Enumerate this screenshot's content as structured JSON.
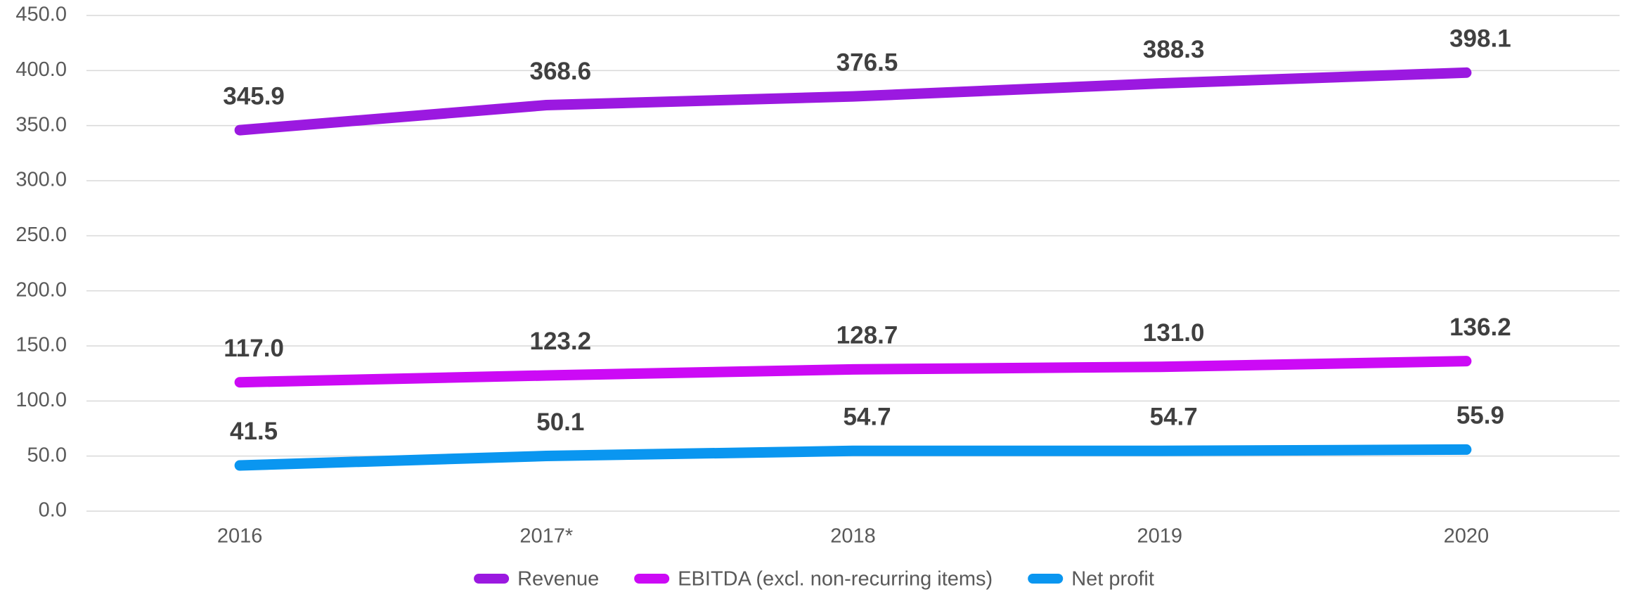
{
  "chart_data": {
    "type": "line",
    "categories": [
      "2016",
      "2017*",
      "2018",
      "2019",
      "2020"
    ],
    "series": [
      {
        "name": "Revenue",
        "color": "#9b19e0",
        "values": [
          345.9,
          368.6,
          376.5,
          388.3,
          398.1
        ],
        "value_labels": [
          "345.9",
          "368.6",
          "376.5",
          "388.3",
          "398.1"
        ]
      },
      {
        "name": "EBITDA (excl. non-recurring items)",
        "color": "#cc0af5",
        "values": [
          117.0,
          123.2,
          128.7,
          131.0,
          136.2
        ],
        "value_labels": [
          "117.0",
          "123.2",
          "128.7",
          "131.0",
          "136.2"
        ]
      },
      {
        "name": "Net profit",
        "color": "#0a96f0",
        "values": [
          41.5,
          50.1,
          54.7,
          54.7,
          55.9
        ],
        "value_labels": [
          "41.5",
          "50.1",
          "54.7",
          "54.7",
          "55.9"
        ]
      }
    ],
    "ylim": [
      0,
      450
    ],
    "yticks": [
      {
        "value": 0,
        "label": "0.0"
      },
      {
        "value": 50,
        "label": "50.0"
      },
      {
        "value": 100,
        "label": "100.0"
      },
      {
        "value": 150,
        "label": "150.0"
      },
      {
        "value": 200,
        "label": "200.0"
      },
      {
        "value": 250,
        "label": "250.0"
      },
      {
        "value": 300,
        "label": "300.0"
      },
      {
        "value": 350,
        "label": "350.0"
      },
      {
        "value": 400,
        "label": "400.0"
      },
      {
        "value": 450,
        "label": "450.0"
      }
    ],
    "grid": true,
    "legend": "bottom"
  }
}
